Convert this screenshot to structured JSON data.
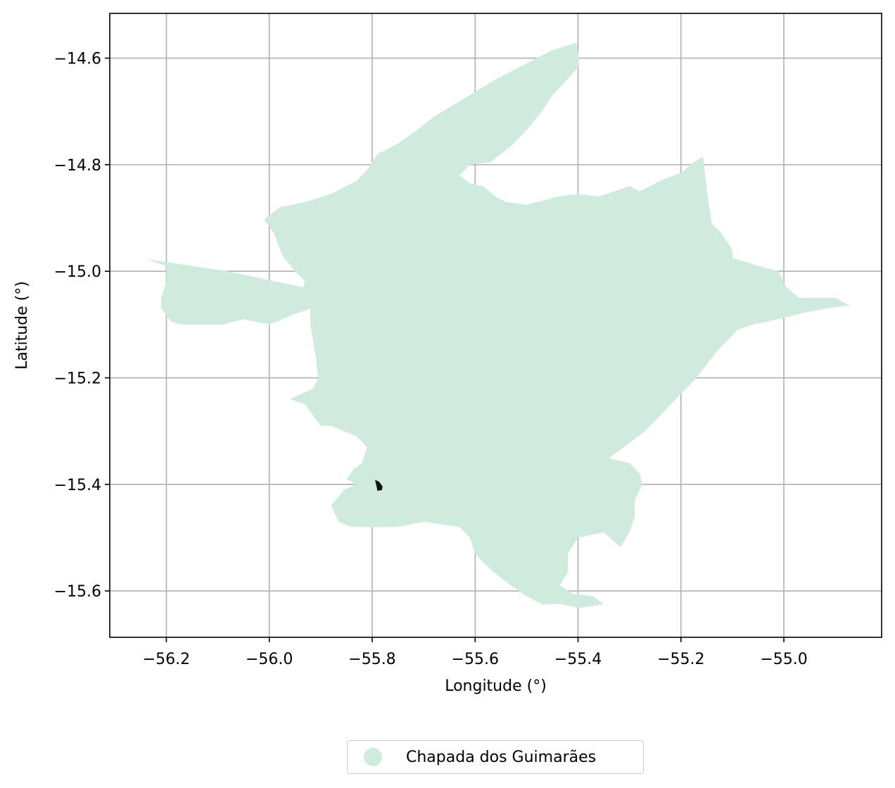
{
  "chart_data": {
    "type": "map",
    "xlabel": "Longitude (°)",
    "ylabel": "Latitude (°)",
    "xlim": [
      -56.31,
      -54.81
    ],
    "ylim": [
      -15.687,
      -14.516
    ],
    "xticks": [
      -56.2,
      -56.0,
      -55.8,
      -55.6,
      -55.4,
      -55.2,
      -55.0
    ],
    "yticks": [
      -14.6,
      -14.8,
      -15.0,
      -15.2,
      -15.4,
      -15.6
    ],
    "xtick_labels": [
      "−56.2",
      "−56.0",
      "−55.8",
      "−55.6",
      "−55.4",
      "−55.2",
      "−55.0"
    ],
    "ytick_labels": [
      "−14.6",
      "−14.8",
      "−15.0",
      "−15.2",
      "−15.4",
      "−15.6"
    ],
    "grid": true,
    "legend_position": "bottom-center, below axes",
    "regions": [
      {
        "name": "Chapada dos Guimarães",
        "color": "#cfebdd",
        "polygon": [
          [
            -55.403,
            -14.571
          ],
          [
            -55.399,
            -14.591
          ],
          [
            -55.398,
            -14.615
          ],
          [
            -55.41,
            -14.628
          ],
          [
            -55.43,
            -14.65
          ],
          [
            -55.45,
            -14.67
          ],
          [
            -55.47,
            -14.7
          ],
          [
            -55.5,
            -14.735
          ],
          [
            -55.53,
            -14.765
          ],
          [
            -55.57,
            -14.795
          ],
          [
            -55.61,
            -14.8
          ],
          [
            -55.63,
            -14.82
          ],
          [
            -55.61,
            -14.835
          ],
          [
            -55.585,
            -14.84
          ],
          [
            -55.56,
            -14.86
          ],
          [
            -55.54,
            -14.87
          ],
          [
            -55.5,
            -14.875
          ],
          [
            -55.47,
            -14.868
          ],
          [
            -55.44,
            -14.86
          ],
          [
            -55.4,
            -14.855
          ],
          [
            -55.36,
            -14.86
          ],
          [
            -55.33,
            -14.85
          ],
          [
            -55.3,
            -14.84
          ],
          [
            -55.28,
            -14.85
          ],
          [
            -55.24,
            -14.83
          ],
          [
            -55.2,
            -14.815
          ],
          [
            -55.175,
            -14.795
          ],
          [
            -55.157,
            -14.785
          ],
          [
            -55.148,
            -14.86
          ],
          [
            -55.14,
            -14.91
          ],
          [
            -55.12,
            -14.93
          ],
          [
            -55.1,
            -14.96
          ],
          [
            -55.1,
            -14.975
          ],
          [
            -55.05,
            -14.99
          ],
          [
            -55.01,
            -15.0
          ],
          [
            -54.995,
            -15.03
          ],
          [
            -54.97,
            -15.05
          ],
          [
            -54.9,
            -15.05
          ],
          [
            -54.872,
            -15.064
          ],
          [
            -54.92,
            -15.07
          ],
          [
            -54.97,
            -15.08
          ],
          [
            -55.01,
            -15.09
          ],
          [
            -55.06,
            -15.1
          ],
          [
            -55.09,
            -15.11
          ],
          [
            -55.13,
            -15.15
          ],
          [
            -55.17,
            -15.2
          ],
          [
            -55.22,
            -15.25
          ],
          [
            -55.27,
            -15.3
          ],
          [
            -55.34,
            -15.351
          ],
          [
            -55.3,
            -15.36
          ],
          [
            -55.28,
            -15.38
          ],
          [
            -55.275,
            -15.4
          ],
          [
            -55.29,
            -15.43
          ],
          [
            -55.29,
            -15.46
          ],
          [
            -55.3,
            -15.49
          ],
          [
            -55.318,
            -15.518
          ],
          [
            -55.35,
            -15.49
          ],
          [
            -55.4,
            -15.5
          ],
          [
            -55.42,
            -15.53
          ],
          [
            -55.42,
            -15.565
          ],
          [
            -55.435,
            -15.59
          ],
          [
            -55.41,
            -15.605
          ],
          [
            -55.37,
            -15.61
          ],
          [
            -55.35,
            -15.625
          ],
          [
            -55.4,
            -15.632
          ],
          [
            -55.43,
            -15.625
          ],
          [
            -55.47,
            -15.625
          ],
          [
            -55.5,
            -15.61
          ],
          [
            -55.53,
            -15.59
          ],
          [
            -55.57,
            -15.56
          ],
          [
            -55.6,
            -15.53
          ],
          [
            -55.61,
            -15.5
          ],
          [
            -55.63,
            -15.48
          ],
          [
            -55.7,
            -15.47
          ],
          [
            -55.75,
            -15.48
          ],
          [
            -55.8,
            -15.48
          ],
          [
            -55.84,
            -15.48
          ],
          [
            -55.865,
            -15.47
          ],
          [
            -55.88,
            -15.44
          ],
          [
            -55.855,
            -15.41
          ],
          [
            -55.83,
            -15.4
          ],
          [
            -55.85,
            -15.39
          ],
          [
            -55.835,
            -15.37
          ],
          [
            -55.82,
            -15.36
          ],
          [
            -55.81,
            -15.33
          ],
          [
            -55.83,
            -15.31
          ],
          [
            -55.88,
            -15.29
          ],
          [
            -55.9,
            -15.29
          ],
          [
            -55.93,
            -15.25
          ],
          [
            -55.96,
            -15.24
          ],
          [
            -55.915,
            -15.22
          ],
          [
            -55.905,
            -15.2
          ],
          [
            -55.91,
            -15.16
          ],
          [
            -55.92,
            -15.1
          ],
          [
            -55.92,
            -15.07
          ],
          [
            -55.95,
            -15.08
          ],
          [
            -56.0,
            -15.1
          ],
          [
            -56.05,
            -15.09
          ],
          [
            -56.09,
            -15.1
          ],
          [
            -56.12,
            -15.1
          ],
          [
            -56.17,
            -15.1
          ],
          [
            -56.19,
            -15.095
          ],
          [
            -56.21,
            -15.07
          ],
          [
            -56.21,
            -15.05
          ],
          [
            -56.2,
            -15.02
          ],
          [
            -56.2,
            -14.99
          ],
          [
            -56.24,
            -14.977
          ],
          [
            -56.22,
            -14.98
          ],
          [
            -56.08,
            -15.0
          ],
          [
            -55.935,
            -15.03
          ],
          [
            -55.93,
            -15.02
          ],
          [
            -55.95,
            -15.0
          ],
          [
            -55.975,
            -14.97
          ],
          [
            -55.99,
            -14.93
          ],
          [
            -56.01,
            -14.903
          ],
          [
            -55.98,
            -14.88
          ],
          [
            -55.93,
            -14.87
          ],
          [
            -55.88,
            -14.855
          ],
          [
            -55.85,
            -14.84
          ],
          [
            -55.83,
            -14.83
          ],
          [
            -55.81,
            -14.81
          ],
          [
            -55.79,
            -14.78
          ],
          [
            -55.75,
            -14.76
          ],
          [
            -55.72,
            -14.74
          ],
          [
            -55.68,
            -14.71
          ],
          [
            -55.62,
            -14.675
          ],
          [
            -55.56,
            -14.64
          ],
          [
            -55.5,
            -14.61
          ],
          [
            -55.45,
            -14.585
          ]
        ]
      },
      {
        "name": "",
        "color": "#111111",
        "polygon": [
          [
            -55.793,
            -15.393
          ],
          [
            -55.787,
            -15.396
          ],
          [
            -55.781,
            -15.404
          ],
          [
            -55.782,
            -15.41
          ],
          [
            -55.789,
            -15.411
          ],
          [
            -55.791,
            -15.402
          ]
        ]
      }
    ]
  },
  "legend": {
    "label": "Chapada dos Guimarães",
    "marker_color": "#cfebdd"
  }
}
